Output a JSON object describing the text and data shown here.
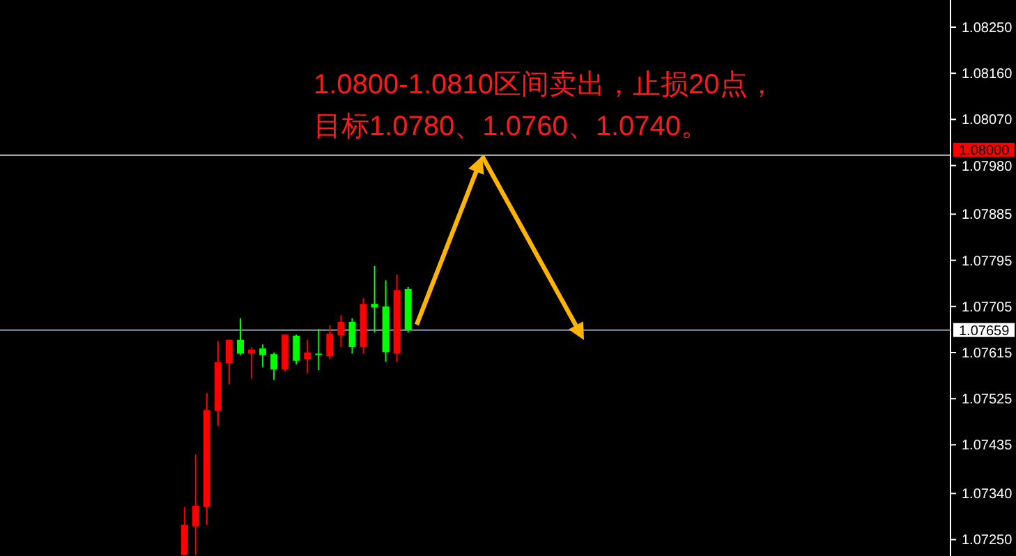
{
  "chart_data": {
    "type": "candlestick",
    "annotations": [
      "1.0800-1.0810区间卖出，止损20点，",
      "目标1.0780、1.0760、1.0740。"
    ],
    "categories": [
      null,
      null,
      null,
      null,
      null,
      null,
      null,
      null,
      null,
      null,
      null,
      null,
      null,
      null,
      null,
      null,
      null,
      null,
      null,
      null,
      null,
      null,
      null,
      null,
      null,
      null,
      null,
      null,
      null,
      null,
      null,
      null,
      null,
      null,
      null,
      null,
      null,
      null,
      null,
      null,
      null,
      null,
      null,
      null,
      null,
      null,
      null,
      null,
      null,
      null,
      null,
      null,
      null,
      null,
      null,
      null,
      null,
      null,
      null,
      null,
      null,
      null,
      null,
      null,
      null,
      null,
      null,
      null,
      null,
      null,
      null,
      null,
      null,
      null,
      null,
      null,
      null,
      null,
      null,
      null,
      null,
      null,
      null,
      null,
      null
    ],
    "ohlc": [
      null,
      null,
      null,
      null,
      null,
      null,
      null,
      null,
      null,
      null,
      null,
      null,
      null,
      null,
      null,
      null,
      [
        1.0722,
        1.07313,
        1.0722,
        1.07279
      ],
      [
        1.07276,
        1.07416,
        1.0722,
        1.07316
      ],
      [
        1.07314,
        1.07536,
        1.07279,
        1.07503
      ],
      [
        1.07501,
        1.07637,
        1.07472,
        1.07596
      ],
      [
        1.07594,
        1.0764,
        1.07553,
        1.0764
      ],
      [
        1.0764,
        1.07682,
        1.0761,
        1.07613
      ],
      [
        1.07613,
        1.07625,
        1.07564,
        1.07621
      ],
      [
        1.07623,
        1.07631,
        1.07586,
        1.0761
      ],
      [
        1.07612,
        1.07615,
        1.07562,
        1.07582
      ],
      [
        1.07582,
        1.0765,
        1.07578,
        1.0765
      ],
      [
        1.07648,
        1.0765,
        1.07592,
        1.07599
      ],
      [
        1.07602,
        1.0764,
        1.07575,
        1.07615
      ],
      [
        1.07613,
        1.07661,
        1.07581,
        1.07611
      ],
      [
        1.07608,
        1.07668,
        1.07602,
        1.07652
      ],
      [
        1.07649,
        1.07688,
        1.07626,
        1.07675
      ],
      [
        1.07675,
        1.07682,
        1.07613,
        1.07626
      ],
      [
        1.07626,
        1.07721,
        1.07613,
        1.0771
      ],
      [
        1.0771,
        1.07784,
        1.07654,
        1.07703
      ],
      [
        1.07705,
        1.07756,
        1.07597,
        1.07616
      ],
      [
        1.07613,
        1.07767,
        1.07597,
        1.07737
      ],
      [
        1.07739,
        1.07743,
        1.07654,
        1.07659
      ],
      null,
      null,
      null,
      null,
      null,
      null,
      null,
      null,
      null,
      null,
      null,
      null,
      null,
      null,
      null,
      null,
      null,
      null,
      null,
      null,
      null,
      null,
      null,
      null,
      null,
      null,
      null,
      null,
      null,
      null,
      null,
      null,
      null,
      null,
      null,
      null,
      null,
      null,
      null,
      null,
      null,
      null,
      null,
      null,
      null,
      null,
      null,
      null
    ],
    "colors": [
      null,
      null,
      null,
      null,
      null,
      null,
      null,
      null,
      null,
      null,
      null,
      null,
      null,
      null,
      null,
      null,
      "#ff0000",
      "#ff0000",
      "#ff0000",
      "#ff0000",
      "#ff0000",
      "#00ff00",
      "#ff0000",
      "#00ff00",
      "#00ff00",
      "#ff0000",
      "#00ff00",
      "#ff0000",
      "#00ff00",
      "#ff0000",
      "#ff0000",
      "#00ff00",
      "#ff0000",
      "#00ff00",
      "#00ff00",
      "#ff0000",
      "#00ff00",
      null,
      null,
      null,
      null,
      null,
      null,
      null,
      null,
      null,
      null,
      null,
      null,
      null,
      null,
      null,
      null,
      null,
      null,
      null,
      null,
      null,
      null,
      null,
      null,
      null,
      null,
      null,
      null,
      null,
      null,
      null,
      null,
      null,
      null,
      null,
      null,
      null,
      null,
      null,
      null,
      null,
      null,
      null,
      null,
      null,
      null,
      null,
      null
    ],
    "ylim": [
      1.07218,
      1.08303
    ],
    "yticks": [
      {
        "value": 1.0825,
        "label": "1.08250"
      },
      {
        "value": 1.0816,
        "label": "1.08160"
      },
      {
        "value": 1.0807,
        "label": "1.08070"
      },
      {
        "value": 1.0798,
        "label": "1.07980"
      },
      1.07885,
      1.07795,
      1.07705,
      1.07615,
      1.07525,
      1.07435,
      {
        "value": 1.0734,
        "label": "1.07340"
      },
      {
        "value": 1.0725,
        "label": "1.07250"
      }
    ],
    "tick_labels": "y",
    "ref_lines": [
      {
        "axis": "y",
        "value": 1.08,
        "label": "1.08000",
        "color": "#c8c8c8"
      },
      {
        "axis": "y",
        "value": 1.07659,
        "label": "1.07659",
        "color": "#8a9aa8"
      }
    ]
  }
}
